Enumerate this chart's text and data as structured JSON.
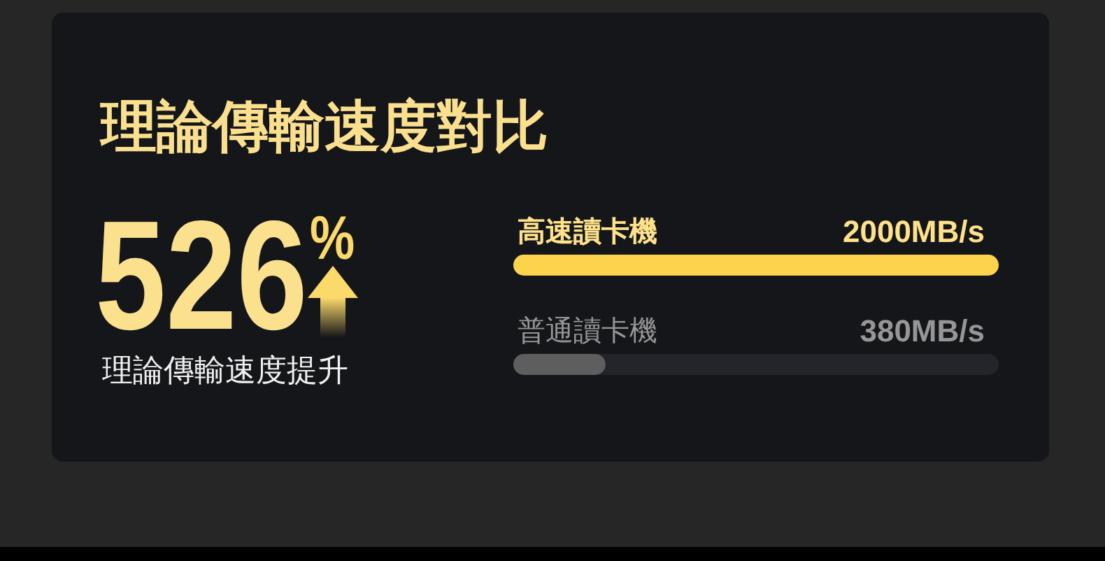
{
  "chart_data": {
    "type": "bar",
    "orientation": "horizontal",
    "title": "理論傳輸速度對比",
    "categories": [
      "高速讀卡機",
      "普通讀卡機"
    ],
    "values": [
      2000,
      380
    ],
    "colors": [
      "#fcd34d",
      "#5e5e5e"
    ],
    "value_labels": [
      "2000MB/s",
      "380MB/s"
    ],
    "annotations": [
      "526%",
      "理論傳輸速度提升"
    ]
  }
}
